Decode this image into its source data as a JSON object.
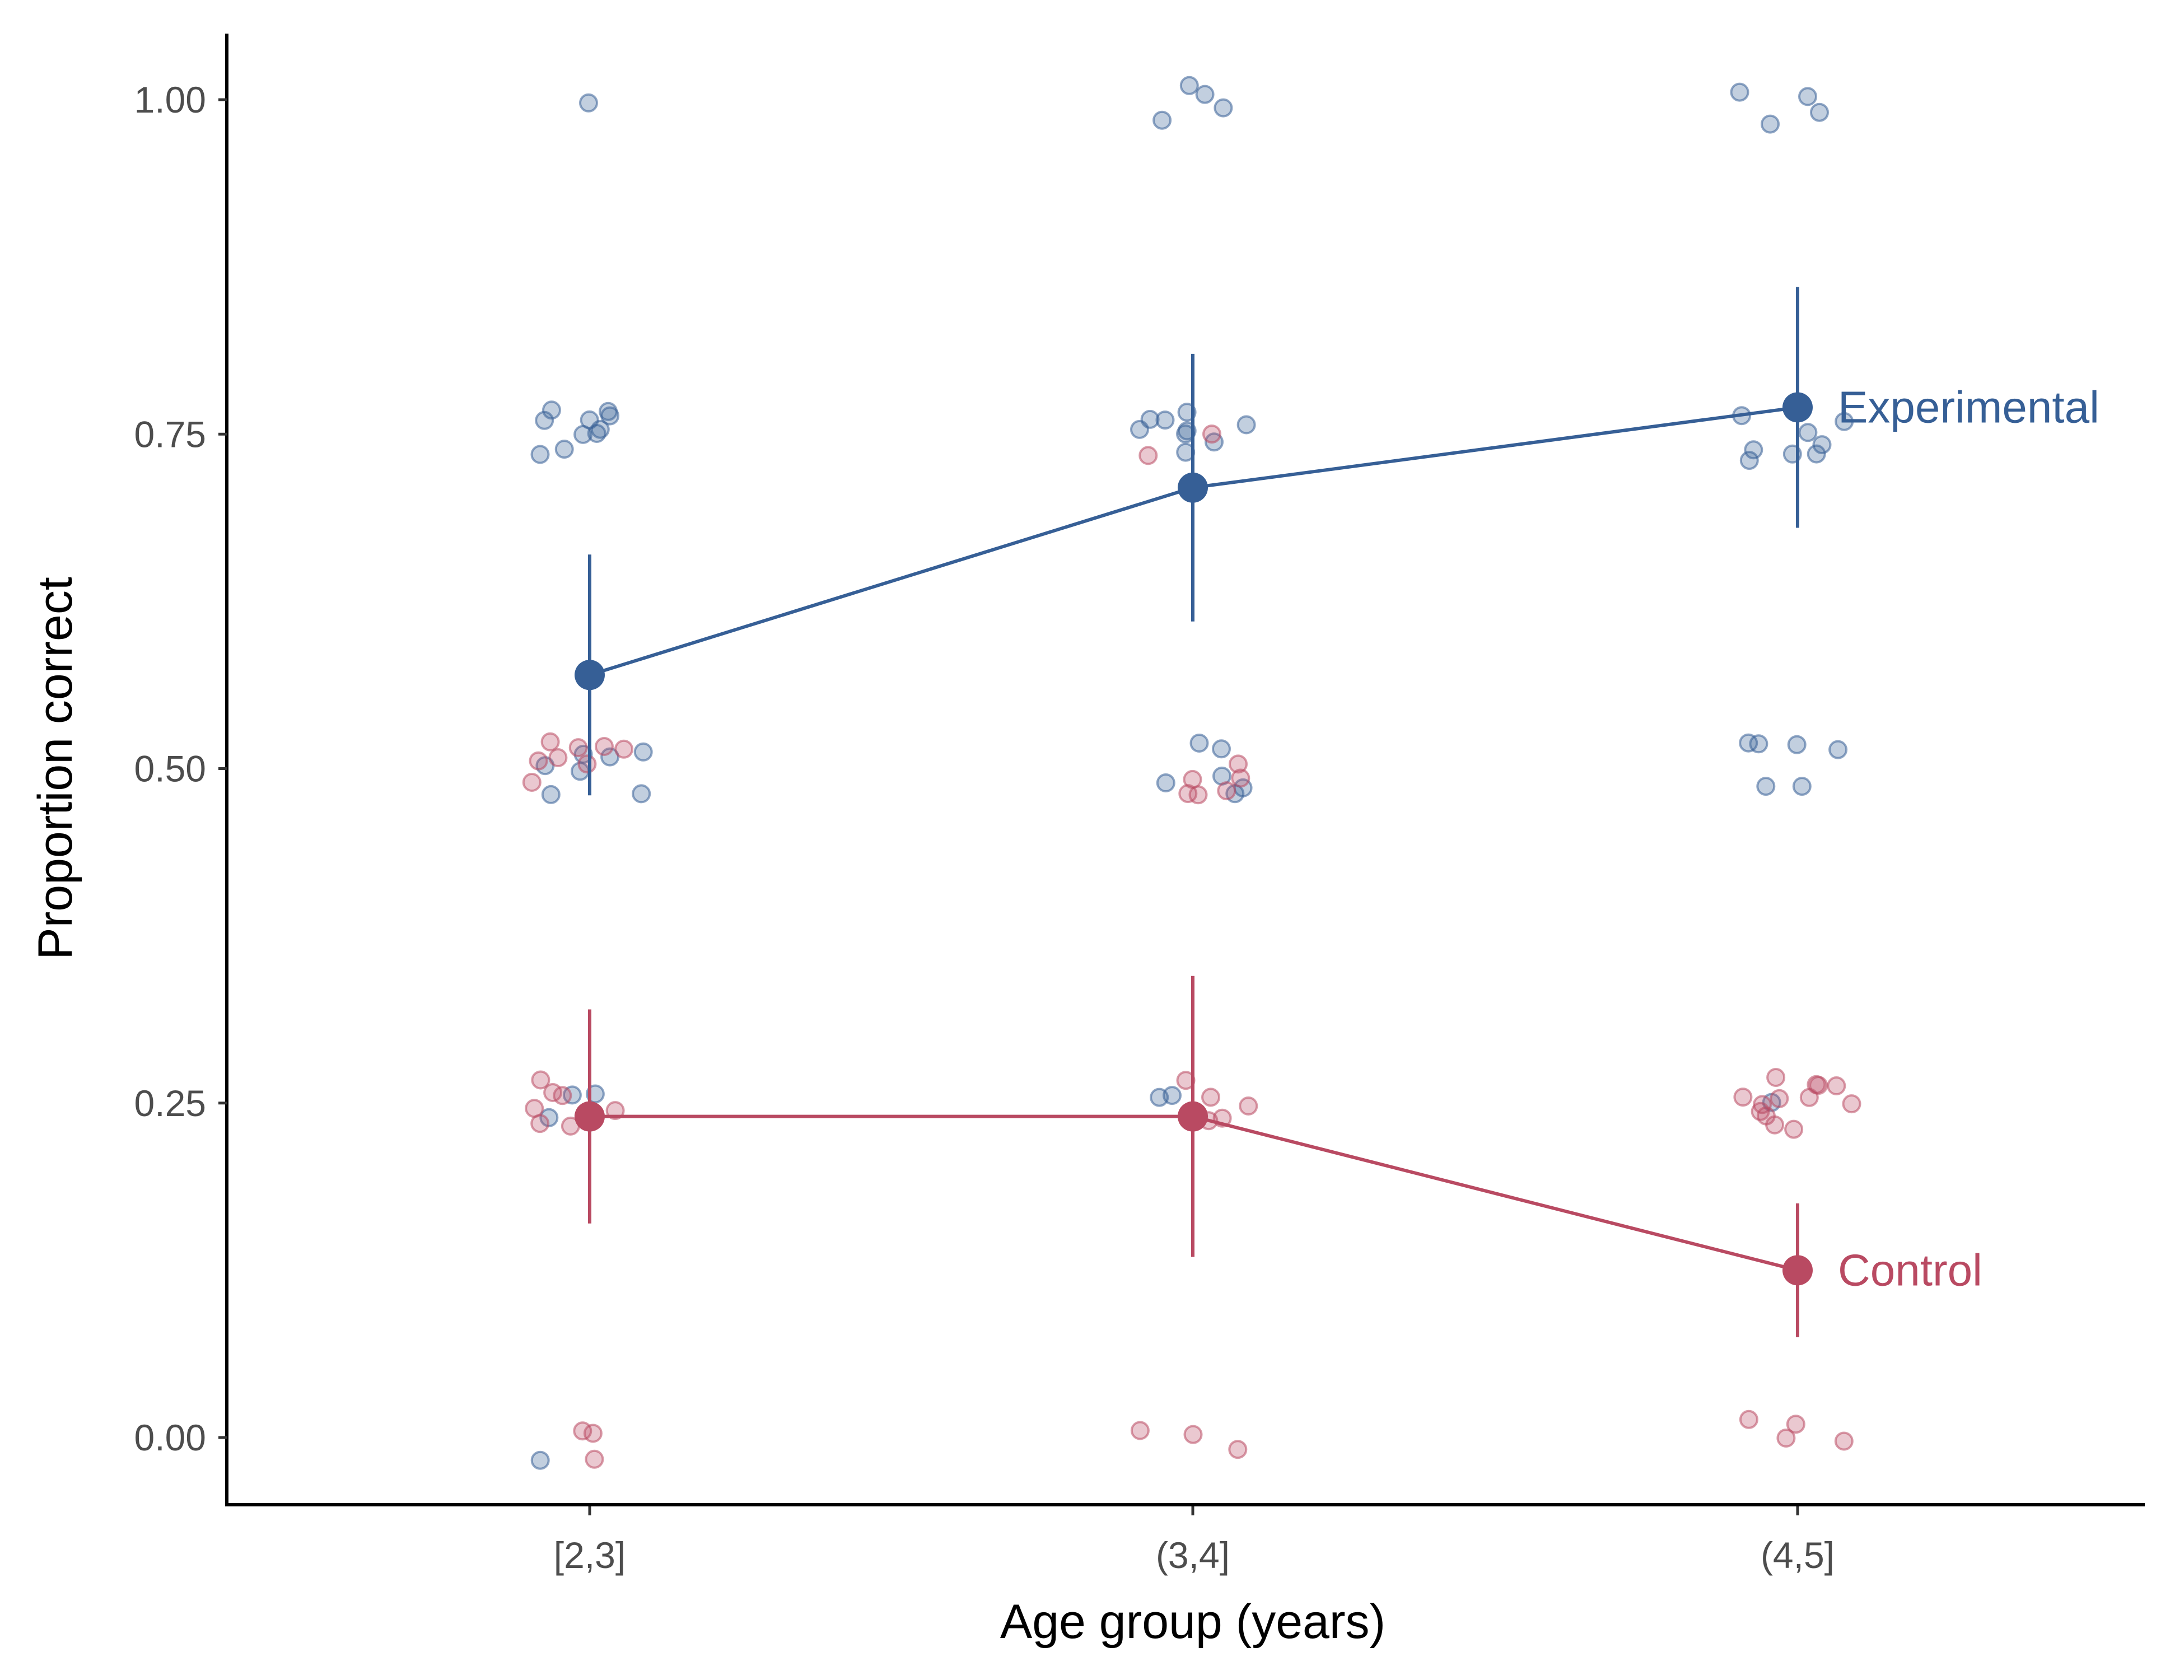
{
  "chart_data": {
    "type": "scatter",
    "xlabel": "Age group (years)",
    "ylabel": "Proportion correct",
    "categories": [
      "[2,3]",
      "(3,4]",
      "(4,5]"
    ],
    "yticks": [
      "0.00",
      "0.25",
      "0.50",
      "0.75",
      "1.00"
    ],
    "ylim": [
      -0.05,
      1.05
    ],
    "grid": false,
    "legend": "direct labels at right end of lines",
    "series": [
      {
        "name": "Experimental",
        "color": "#365f96",
        "mean": [
          0.57,
          0.71,
          0.77
        ],
        "ci_low": [
          0.48,
          0.61,
          0.68
        ],
        "ci_high": [
          0.66,
          0.81,
          0.86
        ],
        "raw_points": [
          [
            1,
            1.0
          ],
          [
            1,
            0.75
          ],
          [
            1,
            0.75
          ],
          [
            1,
            0.75
          ],
          [
            1,
            0.75
          ],
          [
            1,
            0.75
          ],
          [
            1,
            0.75
          ],
          [
            1,
            0.75
          ],
          [
            1,
            0.75
          ],
          [
            1,
            0.75
          ],
          [
            1,
            0.75
          ],
          [
            1,
            0.5
          ],
          [
            1,
            0.5
          ],
          [
            1,
            0.5
          ],
          [
            1,
            0.5
          ],
          [
            1,
            0.5
          ],
          [
            1,
            0.5
          ],
          [
            1,
            0.5
          ],
          [
            1,
            0.25
          ],
          [
            1,
            0.25
          ],
          [
            1,
            0.25
          ],
          [
            1,
            0.0
          ],
          [
            2,
            1.0
          ],
          [
            2,
            1.0
          ],
          [
            2,
            1.0
          ],
          [
            2,
            1.0
          ],
          [
            2,
            0.75
          ],
          [
            2,
            0.75
          ],
          [
            2,
            0.75
          ],
          [
            2,
            0.75
          ],
          [
            2,
            0.75
          ],
          [
            2,
            0.75
          ],
          [
            2,
            0.75
          ],
          [
            2,
            0.75
          ],
          [
            2,
            0.75
          ],
          [
            2,
            0.5
          ],
          [
            2,
            0.5
          ],
          [
            2,
            0.5
          ],
          [
            2,
            0.5
          ],
          [
            2,
            0.5
          ],
          [
            2,
            0.5
          ],
          [
            2,
            0.25
          ],
          [
            2,
            0.25
          ],
          [
            3,
            1.0
          ],
          [
            3,
            1.0
          ],
          [
            3,
            1.0
          ],
          [
            3,
            1.0
          ],
          [
            3,
            0.75
          ],
          [
            3,
            0.75
          ],
          [
            3,
            0.75
          ],
          [
            3,
            0.75
          ],
          [
            3,
            0.75
          ],
          [
            3,
            0.75
          ],
          [
            3,
            0.75
          ],
          [
            3,
            0.75
          ],
          [
            3,
            0.5
          ],
          [
            3,
            0.5
          ],
          [
            3,
            0.5
          ],
          [
            3,
            0.5
          ],
          [
            3,
            0.5
          ],
          [
            3,
            0.5
          ],
          [
            3,
            0.25
          ]
        ]
      },
      {
        "name": "Control",
        "color": "#b94a62",
        "mean": [
          0.24,
          0.24,
          0.125
        ],
        "ci_low": [
          0.16,
          0.135,
          0.075
        ],
        "ci_high": [
          0.32,
          0.345,
          0.175
        ],
        "raw_points": [
          [
            1,
            0.5
          ],
          [
            1,
            0.5
          ],
          [
            1,
            0.5
          ],
          [
            1,
            0.5
          ],
          [
            1,
            0.5
          ],
          [
            1,
            0.5
          ],
          [
            1,
            0.5
          ],
          [
            1,
            0.5
          ],
          [
            1,
            0.25
          ],
          [
            1,
            0.25
          ],
          [
            1,
            0.25
          ],
          [
            1,
            0.25
          ],
          [
            1,
            0.25
          ],
          [
            1,
            0.25
          ],
          [
            1,
            0.25
          ],
          [
            1,
            0.25
          ],
          [
            1,
            0.0
          ],
          [
            1,
            0.0
          ],
          [
            1,
            0.0
          ],
          [
            2,
            0.75
          ],
          [
            2,
            0.75
          ],
          [
            2,
            0.5
          ],
          [
            2,
            0.5
          ],
          [
            2,
            0.5
          ],
          [
            2,
            0.5
          ],
          [
            2,
            0.5
          ],
          [
            2,
            0.5
          ],
          [
            2,
            0.25
          ],
          [
            2,
            0.25
          ],
          [
            2,
            0.25
          ],
          [
            2,
            0.25
          ],
          [
            2,
            0.25
          ],
          [
            2,
            0.0
          ],
          [
            2,
            0.0
          ],
          [
            2,
            0.0
          ],
          [
            3,
            0.25
          ],
          [
            3,
            0.25
          ],
          [
            3,
            0.25
          ],
          [
            3,
            0.25
          ],
          [
            3,
            0.25
          ],
          [
            3,
            0.25
          ],
          [
            3,
            0.25
          ],
          [
            3,
            0.25
          ],
          [
            3,
            0.25
          ],
          [
            3,
            0.25
          ],
          [
            3,
            0.25
          ],
          [
            3,
            0.25
          ],
          [
            3,
            0.25
          ],
          [
            3,
            0.0
          ],
          [
            3,
            0.0
          ],
          [
            3,
            0.0
          ],
          [
            3,
            0.0
          ]
        ]
      }
    ]
  }
}
